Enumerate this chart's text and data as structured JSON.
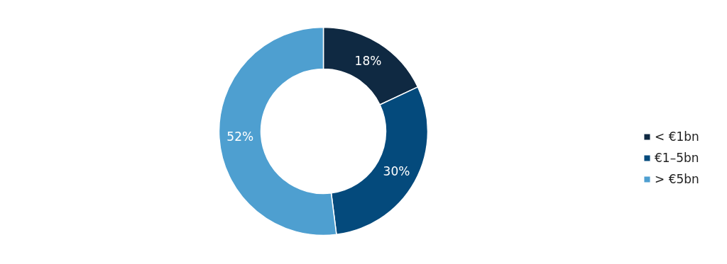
{
  "chart_data": {
    "type": "donut",
    "categories": [
      "< €1bn",
      "€1–5bn",
      "> €5bn"
    ],
    "values": [
      18,
      30,
      52
    ],
    "colors": [
      "#0f2942",
      "#044a7c",
      "#4e9fd0"
    ],
    "value_labels": [
      "18%",
      "30%",
      "52%"
    ],
    "legend": "right"
  }
}
